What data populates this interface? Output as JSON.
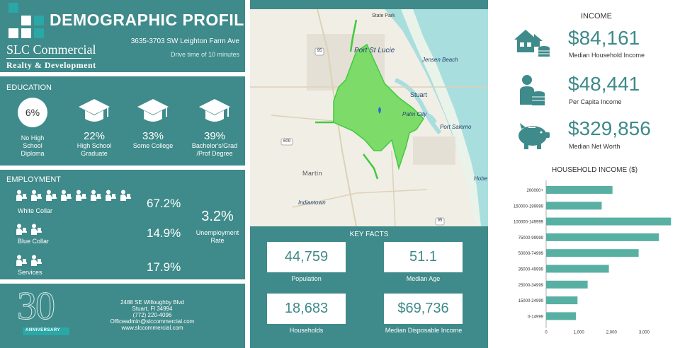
{
  "header": {
    "title": "DEMOGRAPHIC PROFILE",
    "address": "3635-3703 SW Leighton Farm Ave",
    "drive_time": "Drive time of 10 minutes",
    "logo_line1": "SLC Commercial",
    "logo_line2": "Realty & Development"
  },
  "education": {
    "heading": "EDUCATION",
    "items": [
      {
        "value": "6%",
        "label_lines": [
          "No High",
          "School",
          "Diploma"
        ]
      },
      {
        "value": "22%",
        "label_lines": [
          "High School",
          "Graduate"
        ]
      },
      {
        "value": "33%",
        "label_lines": [
          "Some College"
        ]
      },
      {
        "value": "39%",
        "label_lines": [
          "Bachelor's/Grad",
          "/Prof Degree"
        ]
      }
    ],
    "icon": "graduation-cap-icon"
  },
  "employment": {
    "heading": "EMPLOYMENT",
    "rows": [
      {
        "label": "White Collar",
        "value": "67.2%",
        "icon_count": 8
      },
      {
        "label": "Blue Collar",
        "value": "14.9%",
        "icon_count": 2
      },
      {
        "label": "Services",
        "value": "17.9%",
        "icon_count": 2
      }
    ],
    "unemployment_value": "3.2%",
    "unemployment_label_lines": [
      "Unemployment",
      "Rate"
    ],
    "icon": "worker-at-desk-icon"
  },
  "footer": {
    "anniversary_number": "30",
    "anniversary_label": "ANNIVERSARY",
    "address_line1": "2488 SE Willoughby Blvd",
    "address_line2": "Stuart, Fl 34994",
    "phone": "(772) 220-4096",
    "email": "Officeadmin@slccommercial.com",
    "website": "www.slccommercial.com"
  },
  "map": {
    "labels": {
      "state_park": "State Park",
      "port_st_lucie": "Port St Lucie",
      "jensen_beach": "Jensen Beach",
      "stuart": "Stuart",
      "palm_city": "Palm City",
      "port_salerno": "Port Salerno",
      "hobe": "Hobe",
      "martin": "Martin",
      "indiantown": "Indiantown",
      "shield_95_top": "95",
      "shield_95_bottom": "95",
      "shield_609": "609"
    }
  },
  "key_facts": {
    "heading": "KEY FACTS",
    "items": [
      {
        "value": "44,759",
        "label": "Population"
      },
      {
        "value": "51.1",
        "label": "Median Age"
      },
      {
        "value": "18,683",
        "label": "Households"
      },
      {
        "value": "$69,736",
        "label": "Median Disposable Income"
      }
    ]
  },
  "income": {
    "heading": "INCOME",
    "items": [
      {
        "value": "$84,161",
        "label": "Median Household Income",
        "icon": "house-coins-icon"
      },
      {
        "value": "$48,441",
        "label": "Per Capita Income",
        "icon": "person-coins-icon"
      },
      {
        "value": "$329,856",
        "label": "Median Net Worth",
        "icon": "piggy-bank-icon"
      }
    ]
  },
  "colors": {
    "teal": "#3f8a8a",
    "bar": "#58b0a3",
    "value_text": "#3f8a8a",
    "map_area": "#7ddb6a"
  },
  "chart_data": {
    "type": "bar",
    "orientation": "horizontal",
    "title": "HOUSEHOLD INCOME ($)",
    "categories": [
      "200000+",
      "150000-199999",
      "100000-149999",
      "75000-99999",
      "50000-74999",
      "35000-49999",
      "25000-34999",
      "15000-24999",
      "0-14999"
    ],
    "values": [
      2030,
      1700,
      3820,
      3450,
      2830,
      1920,
      1270,
      960,
      910
    ],
    "xticks": [
      "0",
      "1,000",
      "2,000",
      "3,000"
    ],
    "xlim": [
      0,
      3900
    ],
    "grid": false
  }
}
